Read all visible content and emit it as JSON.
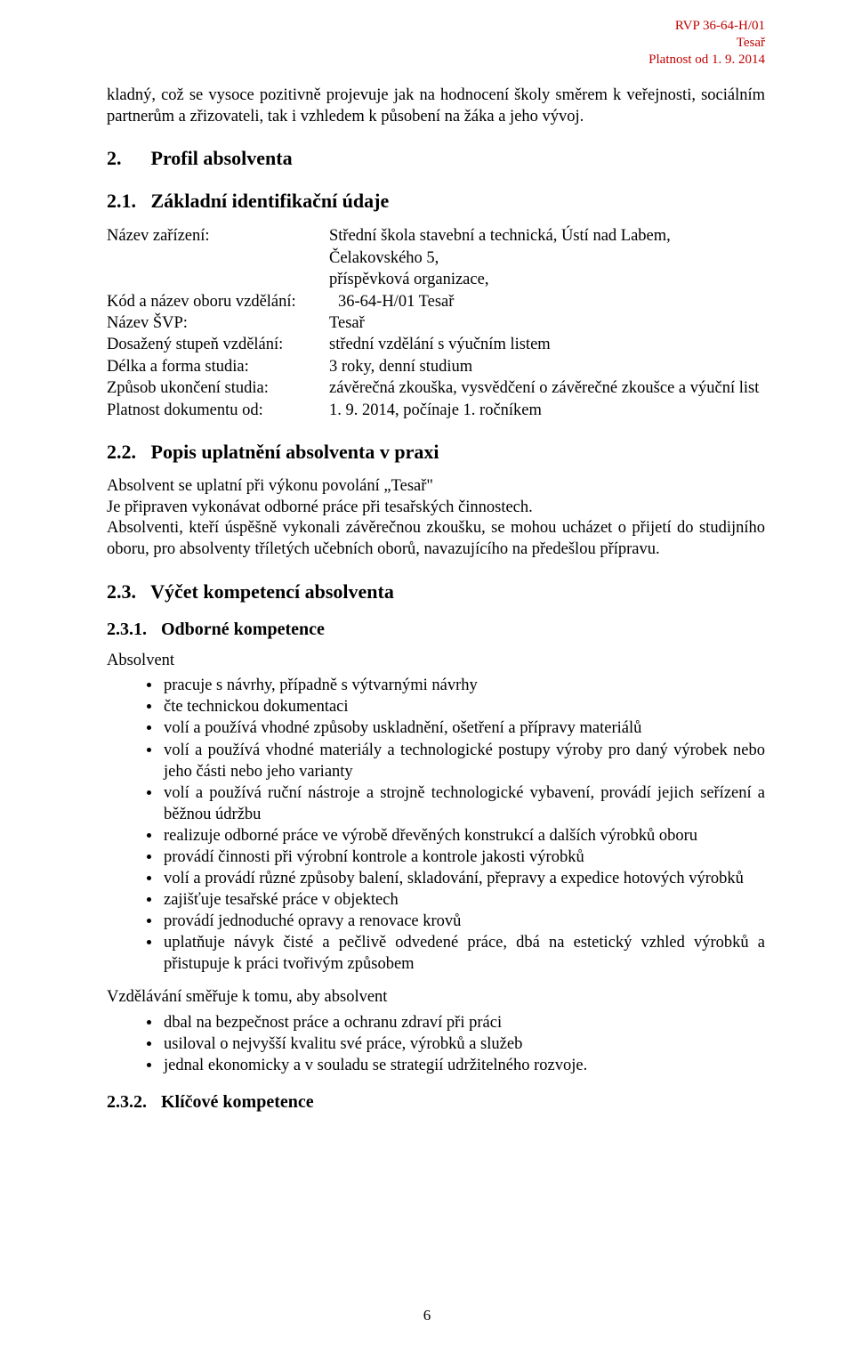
{
  "header": {
    "line1": "RVP 36-64-H/01",
    "line2": "Tesař",
    "line3": "Platnost od 1. 9. 2014"
  },
  "intro_para": "kladný, což se vysoce pozitivně projevuje jak na hodnocení školy směrem k veřejnosti, sociálním partnerům a zřizovateli, tak i vzhledem k působení na žáka a jeho vývoj.",
  "sec2": {
    "num": "2.",
    "title": "Profil absolventa"
  },
  "sec21": {
    "num": "2.1.",
    "title": "Základní identifikační údaje"
  },
  "kv": {
    "nazev_zarizeni_label": "Název zařízení:",
    "nazev_zarizeni_value1": "Střední škola stavební a technická, Ústí nad Labem, Čelakovského 5,",
    "nazev_zarizeni_value2": "příspěvková organizace,",
    "kod_label": "Kód a název oboru vzdělání:",
    "kod_value": "36-64-H/01 Tesař",
    "svp_label": "Název ŠVP:",
    "svp_value": "Tesař",
    "stupen_label": "Dosažený stupeň vzdělání:",
    "stupen_value": "střední vzdělání s výučním listem",
    "delka_label": "Délka a forma studia:",
    "delka_value": "3 roky, denní studium",
    "zpusob_label": "Způsob ukončení studia:",
    "zpusob_value": "závěrečná zkouška, vysvědčení o závěrečné zkoušce a výuční list",
    "platnost_label": "Platnost dokumentu od:",
    "platnost_value": "1. 9. 2014, počínaje 1. ročníkem"
  },
  "sec22": {
    "num": "2.2.",
    "title": "Popis uplatnění absolventa v praxi"
  },
  "sec22_p1": "Absolvent se uplatní při výkonu povolání „Tesař\"",
  "sec22_p2": "Je připraven vykonávat odborné práce při tesařských činnostech.",
  "sec22_p3": "Absolventi, kteří úspěšně vykonali závěrečnou zkoušku, se mohou ucházet o přijetí do studijního oboru, pro absolventy tříletých učebních oborů, navazujícího na předešlou přípravu.",
  "sec23": {
    "num": "2.3.",
    "title": "Výčet kompetencí absolventa"
  },
  "sec231": {
    "num": "2.3.1.",
    "title": "Odborné kompetence"
  },
  "absolvent_label": "Absolvent",
  "bullets1": [
    "pracuje s návrhy, případně s výtvarnými návrhy",
    "čte technickou dokumentaci",
    "volí a používá vhodné způsoby uskladnění, ošetření a přípravy materiálů",
    "volí a používá vhodné materiály a technologické postupy výroby pro daný výrobek nebo jeho části nebo jeho varianty",
    "volí a používá ruční nástroje a strojně technologické vybavení, provádí jejich seřízení a běžnou údržbu",
    "realizuje odborné práce ve výrobě dřevěných konstrukcí a dalších výrobků oboru",
    "provádí činnosti při výrobní kontrole a kontrole jakosti výrobků",
    "volí a provádí různé způsoby balení, skladování, přepravy a expedice hotových výrobků",
    "zajišťuje tesařské práce v objektech",
    "provádí jednoduché opravy a renovace krovů",
    "uplatňuje návyk čisté a pečlivě odvedené práce, dbá na estetický vzhled výrobků a přistupuje k práci tvořivým způsobem"
  ],
  "vzdel_label": "Vzdělávání směřuje k tomu, aby absolvent",
  "bullets2": [
    "dbal na bezpečnost práce a ochranu zdraví při práci",
    "usiloval o nejvyšší kvalitu své práce, výrobků a služeb",
    "jednal ekonomicky a v souladu se strategií udržitelného rozvoje."
  ],
  "sec232": {
    "num": "2.3.2.",
    "title": "Klíčové kompetence"
  },
  "page_number": "6"
}
